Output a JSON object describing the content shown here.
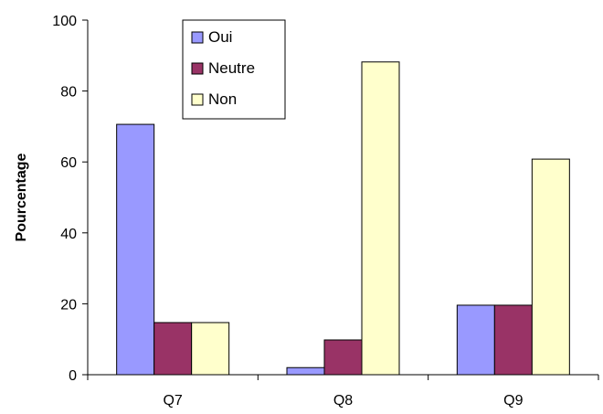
{
  "chart_data": {
    "type": "bar",
    "categories": [
      "Q7",
      "Q8",
      "Q9"
    ],
    "series": [
      {
        "name": "Oui",
        "values": [
          70.6,
          2.0,
          19.6
        ],
        "color": "#9999ff"
      },
      {
        "name": "Neutre",
        "values": [
          14.7,
          9.8,
          19.6
        ],
        "color": "#993366"
      },
      {
        "name": "Non",
        "values": [
          14.7,
          88.2,
          60.8
        ],
        "color": "#ffffcc"
      }
    ],
    "title": "",
    "xlabel": "",
    "ylabel": "Pourcentage",
    "ylim": [
      0,
      100
    ],
    "yticks": [
      "0",
      "20",
      "40",
      "60",
      "80",
      "100"
    ],
    "ytick_values": [
      0,
      20,
      40,
      60,
      80,
      100
    ],
    "grid": false,
    "legend_position": "top-center"
  }
}
